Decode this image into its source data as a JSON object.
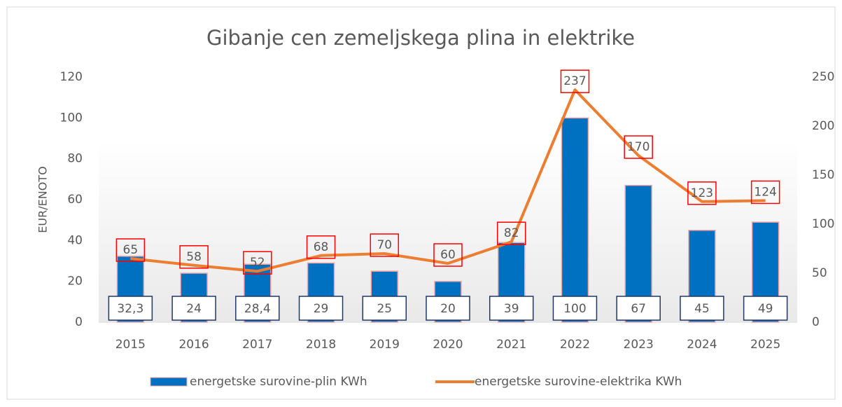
{
  "chart_data": {
    "type": "bar",
    "title": "Gibanje cen zemeljskega plina in elektrike",
    "y_label": "EUR/ENOTO",
    "categories": [
      "2015",
      "2016",
      "2017",
      "2018",
      "2019",
      "2020",
      "2021",
      "2022",
      "2023",
      "2024",
      "2025"
    ],
    "series": [
      {
        "name": "energetske surovine-plin KWh",
        "color": "#0070c0",
        "type": "bar",
        "axis": "y",
        "values": [
          32.3,
          24,
          28.4,
          29,
          25,
          20,
          39,
          100,
          67,
          45,
          49
        ],
        "value_labels": [
          "32,3",
          "24",
          "28,4",
          "29",
          "25",
          "20",
          "39",
          "100",
          "67",
          "45",
          "49"
        ]
      },
      {
        "name": "energetske surovine-elektrika KWh",
        "color": "#ed7d31",
        "type": "line",
        "axis": "y2",
        "values": [
          65,
          58,
          52,
          68,
          70,
          60,
          82,
          237,
          170,
          123,
          124
        ]
      }
    ],
    "ylim": [
      0,
      120
    ],
    "yticks": [
      0,
      20,
      40,
      60,
      80,
      100,
      120
    ],
    "y2lim": [
      0,
      250
    ],
    "y2ticks": [
      0,
      50,
      100,
      150,
      200,
      250
    ],
    "legend": "bottom"
  }
}
